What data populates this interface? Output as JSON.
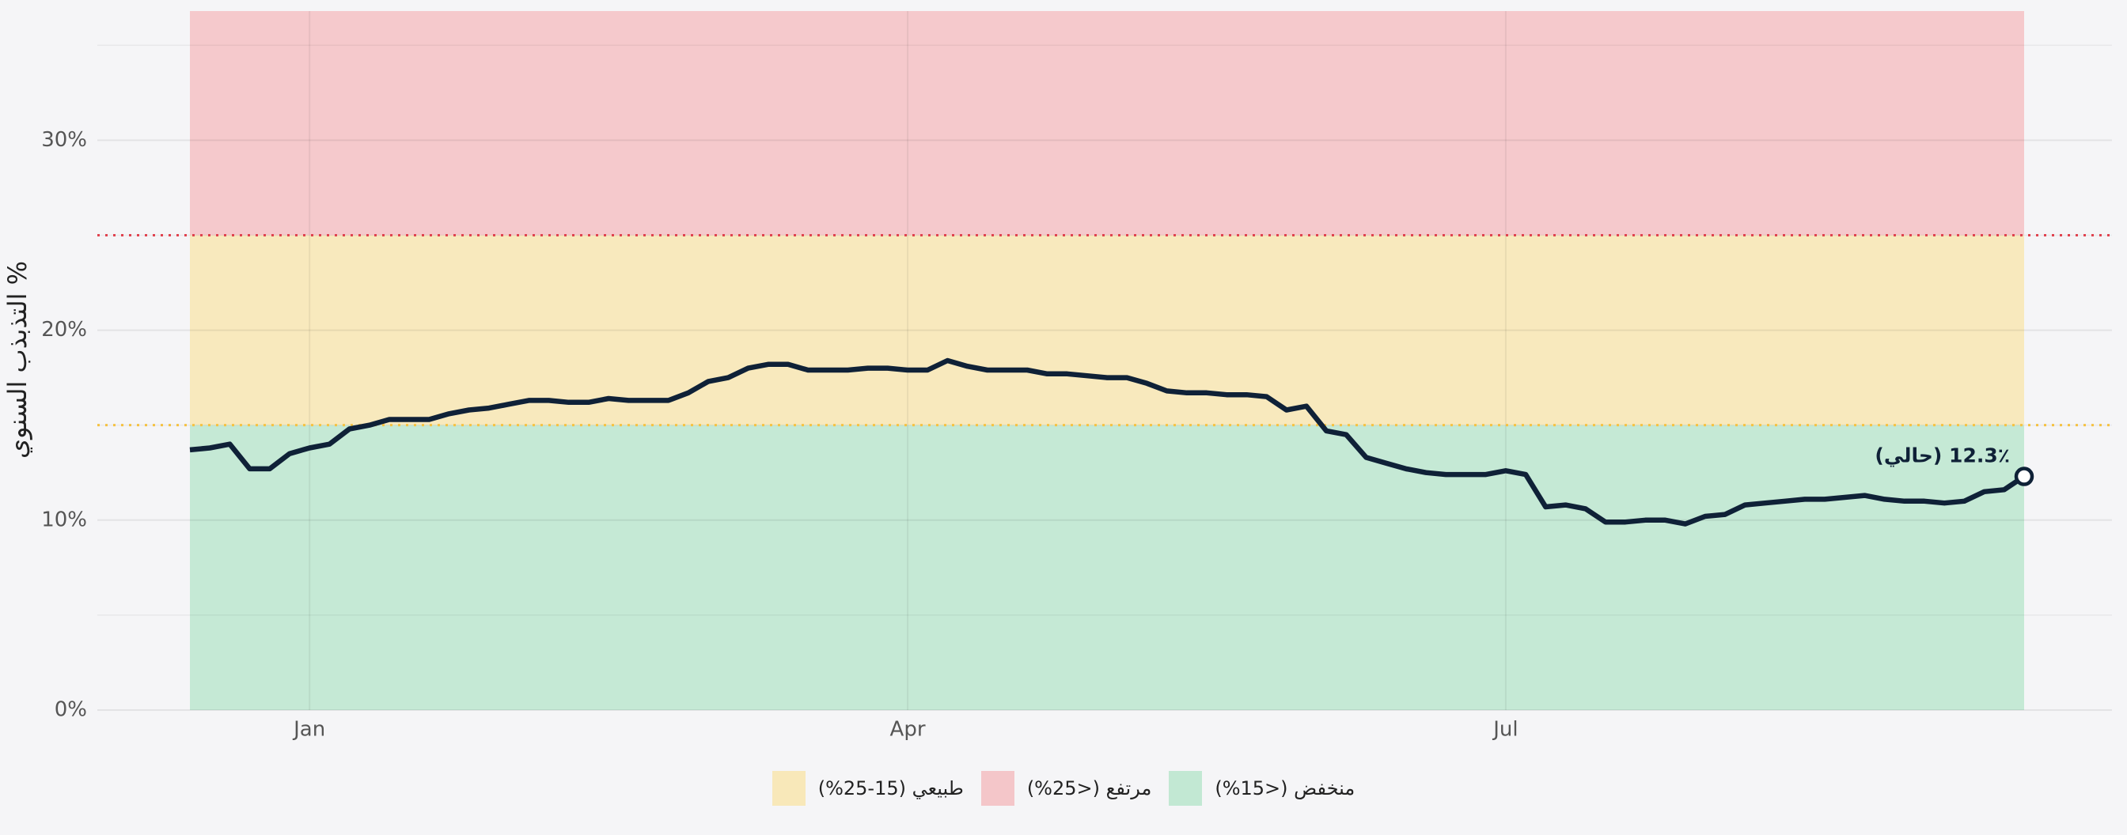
{
  "chart_data": {
    "type": "line",
    "y_label": "التذبذب السنوي %",
    "categories": [
      null,
      null,
      null,
      null,
      null,
      null,
      "Jan",
      null,
      null,
      null,
      null,
      null,
      null,
      null,
      null,
      null,
      null,
      null,
      null,
      null,
      null,
      null,
      null,
      null,
      null,
      null,
      null,
      null,
      null,
      null,
      null,
      null,
      null,
      null,
      null,
      null,
      "Apr",
      null,
      null,
      null,
      null,
      null,
      null,
      null,
      null,
      null,
      null,
      null,
      null,
      null,
      null,
      null,
      null,
      null,
      null,
      null,
      null,
      null,
      null,
      null,
      null,
      null,
      null,
      null,
      null,
      null,
      "Jul",
      null,
      null,
      null,
      null,
      null,
      null,
      null,
      null,
      null,
      null,
      null,
      null,
      null,
      null,
      null,
      null,
      null,
      null,
      null,
      null,
      null,
      null,
      null,
      null,
      null,
      null
    ],
    "series": [
      {
        "color": "#0f2137",
        "values": [
          13.7,
          13.8,
          14.0,
          12.7,
          12.7,
          13.5,
          13.8,
          14.0,
          14.8,
          15.0,
          15.3,
          15.3,
          15.3,
          15.6,
          15.8,
          15.9,
          16.1,
          16.3,
          16.3,
          16.2,
          16.2,
          16.4,
          16.3,
          16.3,
          16.3,
          16.7,
          17.3,
          17.5,
          18.0,
          18.2,
          18.2,
          17.9,
          17.9,
          17.9,
          18.0,
          18.0,
          17.9,
          17.9,
          18.4,
          18.1,
          17.9,
          17.9,
          17.9,
          17.7,
          17.7,
          17.6,
          17.5,
          17.5,
          17.2,
          16.8,
          16.7,
          16.7,
          16.6,
          16.6,
          16.5,
          15.8,
          16.0,
          14.7,
          14.5,
          13.3,
          13.0,
          12.7,
          12.5,
          12.4,
          12.4,
          12.4,
          12.6,
          12.4,
          10.7,
          10.8,
          10.6,
          9.9,
          9.9,
          10.0,
          10.0,
          9.8,
          10.2,
          10.3,
          10.8,
          10.9,
          11.0,
          11.1,
          11.1,
          11.2,
          11.3,
          11.1,
          11.0,
          11.0,
          10.9,
          11.0,
          11.5,
          11.6,
          12.3
        ]
      }
    ],
    "current_label": "12.3٪ (حالي)",
    "ylim": [
      0,
      36.8
    ],
    "yticks": [
      {
        "value": 0,
        "label": "0%"
      },
      {
        "value": 10,
        "label": "10%"
      },
      {
        "value": 20,
        "label": "20%"
      },
      {
        "value": 30,
        "label": "30%"
      }
    ],
    "minor_yticks": [
      5,
      15,
      25,
      35
    ],
    "grid": true,
    "bands": [
      {
        "name": "طبيعي (15-25%)",
        "color": "#f8e8b9",
        "from": 15,
        "to": 25
      },
      {
        "name": "مرتفع (<25%)",
        "color": "#f4c6c9",
        "from": 25,
        "to": 36.8
      },
      {
        "name": "منخفض (<15%)",
        "color": "#c2e8d3",
        "from": 0,
        "to": 15
      }
    ],
    "thresholds": [
      {
        "value": 15,
        "color": "#f5c242"
      },
      {
        "value": 25,
        "color": "#e0434f"
      }
    ],
    "legend": "bottom"
  }
}
